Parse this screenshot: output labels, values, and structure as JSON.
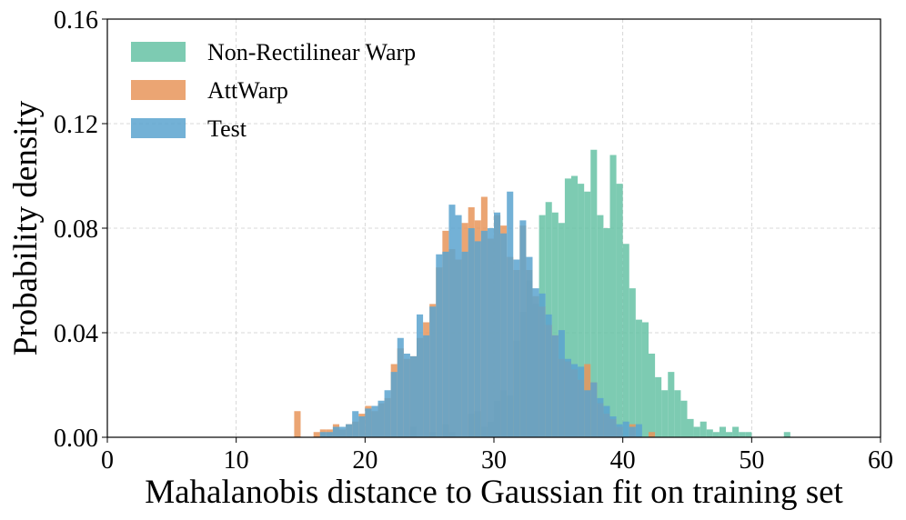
{
  "chart_data": {
    "type": "histogram",
    "title": "",
    "xlabel": "Mahalanobis distance to Gaussian fit on training set",
    "ylabel": "Probability density",
    "xlim": [
      0,
      60
    ],
    "ylim": [
      0,
      0.16
    ],
    "x_ticks": [
      "0",
      "10",
      "20",
      "30",
      "40",
      "50",
      "60"
    ],
    "y_ticks": [
      "0.00",
      "0.04",
      "0.08",
      "0.12",
      "0.16"
    ],
    "grid": true,
    "legend_position": "top-left",
    "series": [
      {
        "name": "Non-Rectilinear Warp",
        "color": "#66c2a5",
        "bins": [
          [
            23.5,
            0.004
          ],
          [
            25.0,
            0.002
          ],
          [
            26.0,
            0.005
          ],
          [
            26.5,
            0.002
          ],
          [
            28.0,
            0.009
          ],
          [
            28.5,
            0.01
          ],
          [
            29.0,
            0.004
          ],
          [
            29.5,
            0.006
          ],
          [
            30.0,
            0.014
          ],
          [
            30.5,
            0.018
          ],
          [
            31.0,
            0.016
          ],
          [
            31.5,
            0.037
          ],
          [
            32.0,
            0.048
          ],
          [
            32.5,
            0.06
          ],
          [
            33.0,
            0.051
          ],
          [
            33.5,
            0.085
          ],
          [
            34.0,
            0.09
          ],
          [
            34.5,
            0.086
          ],
          [
            35.0,
            0.082
          ],
          [
            35.5,
            0.099
          ],
          [
            36.0,
            0.1
          ],
          [
            36.5,
            0.097
          ],
          [
            37.0,
            0.094
          ],
          [
            37.5,
            0.11
          ],
          [
            38.0,
            0.085
          ],
          [
            38.5,
            0.08
          ],
          [
            39.0,
            0.108
          ],
          [
            39.5,
            0.097
          ],
          [
            40.0,
            0.074
          ],
          [
            40.5,
            0.057
          ],
          [
            41.0,
            0.045
          ],
          [
            41.5,
            0.044
          ],
          [
            42.0,
            0.032
          ],
          [
            42.5,
            0.023
          ],
          [
            43.0,
            0.018
          ],
          [
            43.5,
            0.025
          ],
          [
            44.0,
            0.018
          ],
          [
            44.5,
            0.014
          ],
          [
            45.0,
            0.007
          ],
          [
            45.5,
            0.004
          ],
          [
            46.0,
            0.006
          ],
          [
            46.5,
            0.003
          ],
          [
            47.0,
            0.002
          ],
          [
            47.5,
            0.004
          ],
          [
            48.0,
            0.002
          ],
          [
            48.5,
            0.004
          ],
          [
            49.0,
            0.002
          ],
          [
            49.5,
            0.002
          ],
          [
            52.5,
            0.002
          ]
        ]
      },
      {
        "name": "AttWarp",
        "color": "#e8955a",
        "bins": [
          [
            14.5,
            0.01
          ],
          [
            16.0,
            0.002
          ],
          [
            16.5,
            0.003
          ],
          [
            17.0,
            0.003
          ],
          [
            17.5,
            0.005
          ],
          [
            18.0,
            0.003
          ],
          [
            18.5,
            0.005
          ],
          [
            19.0,
            0.006
          ],
          [
            19.5,
            0.009
          ],
          [
            20.0,
            0.012
          ],
          [
            20.5,
            0.01
          ],
          [
            21.0,
            0.013
          ],
          [
            21.5,
            0.015
          ],
          [
            22.0,
            0.028
          ],
          [
            22.5,
            0.034
          ],
          [
            23.0,
            0.03
          ],
          [
            23.5,
            0.031
          ],
          [
            24.0,
            0.038
          ],
          [
            24.5,
            0.044
          ],
          [
            25.0,
            0.051
          ],
          [
            25.5,
            0.065
          ],
          [
            26.0,
            0.079
          ],
          [
            26.5,
            0.072
          ],
          [
            27.0,
            0.068
          ],
          [
            27.5,
            0.082
          ],
          [
            28.0,
            0.088
          ],
          [
            28.5,
            0.083
          ],
          [
            29.0,
            0.092
          ],
          [
            29.5,
            0.076
          ],
          [
            30.0,
            0.085
          ],
          [
            30.5,
            0.081
          ],
          [
            31.0,
            0.069
          ],
          [
            31.5,
            0.064
          ],
          [
            32.0,
            0.081
          ],
          [
            32.5,
            0.064
          ],
          [
            33.0,
            0.054
          ],
          [
            33.5,
            0.05
          ],
          [
            34.0,
            0.043
          ],
          [
            34.5,
            0.039
          ],
          [
            35.0,
            0.03
          ],
          [
            35.5,
            0.029
          ],
          [
            36.0,
            0.026
          ],
          [
            36.5,
            0.022
          ],
          [
            37.0,
            0.028
          ],
          [
            37.5,
            0.021
          ],
          [
            38.0,
            0.013
          ],
          [
            38.5,
            0.009
          ],
          [
            39.0,
            0.007
          ],
          [
            39.5,
            0.004
          ],
          [
            40.5,
            0.005
          ],
          [
            42.0,
            0.002
          ]
        ]
      },
      {
        "name": "Test",
        "color": "#5aa3cf",
        "bins": [
          [
            16.5,
            0.002
          ],
          [
            17.0,
            0.002
          ],
          [
            17.5,
            0.004
          ],
          [
            18.0,
            0.004
          ],
          [
            18.5,
            0.005
          ],
          [
            19.0,
            0.01
          ],
          [
            19.5,
            0.008
          ],
          [
            20.0,
            0.011
          ],
          [
            20.5,
            0.012
          ],
          [
            21.0,
            0.014
          ],
          [
            21.5,
            0.018
          ],
          [
            22.0,
            0.025
          ],
          [
            22.5,
            0.038
          ],
          [
            23.0,
            0.032
          ],
          [
            23.5,
            0.031
          ],
          [
            24.0,
            0.047
          ],
          [
            24.5,
            0.039
          ],
          [
            25.0,
            0.05
          ],
          [
            25.5,
            0.07
          ],
          [
            26.0,
            0.071
          ],
          [
            26.5,
            0.089
          ],
          [
            27.0,
            0.085
          ],
          [
            27.5,
            0.071
          ],
          [
            28.0,
            0.08
          ],
          [
            28.5,
            0.075
          ],
          [
            29.0,
            0.079
          ],
          [
            29.5,
            0.08
          ],
          [
            30.0,
            0.086
          ],
          [
            30.5,
            0.078
          ],
          [
            31.0,
            0.094
          ],
          [
            31.5,
            0.068
          ],
          [
            32.0,
            0.083
          ],
          [
            32.5,
            0.069
          ],
          [
            33.0,
            0.057
          ],
          [
            33.5,
            0.055
          ],
          [
            34.0,
            0.047
          ],
          [
            34.5,
            0.039
          ],
          [
            35.0,
            0.041
          ],
          [
            35.5,
            0.03
          ],
          [
            36.0,
            0.028
          ],
          [
            36.5,
            0.027
          ],
          [
            37.0,
            0.018
          ],
          [
            37.5,
            0.021
          ],
          [
            38.0,
            0.015
          ],
          [
            38.5,
            0.012
          ],
          [
            39.0,
            0.008
          ],
          [
            39.5,
            0.005
          ],
          [
            40.0,
            0.006
          ],
          [
            40.5,
            0.004
          ],
          [
            41.0,
            0.005
          ]
        ]
      }
    ]
  }
}
